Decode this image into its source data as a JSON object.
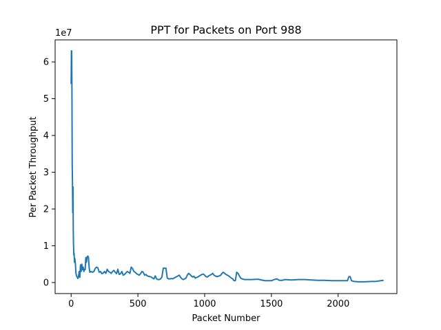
{
  "chart_data": {
    "type": "line",
    "title": "PPT for Packets on Port 988",
    "xlabel": "Packet Number",
    "ylabel": "Per Packet Throughput",
    "y_offset_label": "1e7",
    "xlim": [
      -120,
      2440
    ],
    "ylim": [
      -3.0,
      66.0
    ],
    "y_scale": 10000000,
    "xticks": [
      0,
      500,
      1000,
      1500,
      2000
    ],
    "xtick_labels": [
      "0",
      "500",
      "1000",
      "1500",
      "2000"
    ],
    "yticks": [
      0,
      1,
      2,
      3,
      4,
      5,
      6
    ],
    "ytick_labels": [
      "0",
      "1",
      "2",
      "3",
      "4",
      "5",
      "6"
    ],
    "grid": false,
    "series": [
      {
        "color": "#1f77b4",
        "x": [
          0,
          2,
          4,
          6,
          8,
          10,
          12,
          14,
          16,
          18,
          20,
          22,
          25,
          28,
          32,
          36,
          40,
          45,
          50,
          55,
          60,
          65,
          70,
          75,
          80,
          85,
          90,
          95,
          100,
          105,
          110,
          115,
          120,
          125,
          130,
          135,
          140,
          150,
          160,
          170,
          180,
          190,
          200,
          210,
          220,
          230,
          240,
          250,
          260,
          270,
          280,
          290,
          300,
          310,
          320,
          330,
          340,
          350,
          360,
          370,
          380,
          390,
          400,
          410,
          420,
          430,
          440,
          450,
          460,
          470,
          480,
          490,
          500,
          510,
          520,
          530,
          540,
          550,
          560,
          570,
          580,
          590,
          600,
          610,
          620,
          630,
          640,
          650,
          660,
          670,
          680,
          690,
          700,
          710,
          720,
          730,
          740,
          750,
          760,
          770,
          780,
          790,
          800,
          810,
          820,
          830,
          840,
          850,
          860,
          870,
          880,
          890,
          900,
          910,
          920,
          930,
          940,
          950,
          960,
          970,
          980,
          990,
          1000,
          1010,
          1020,
          1030,
          1040,
          1050,
          1060,
          1070,
          1080,
          1090,
          1100,
          1110,
          1120,
          1130,
          1140,
          1150,
          1160,
          1170,
          1180,
          1190,
          1200,
          1210,
          1220,
          1230,
          1240,
          1250,
          1260,
          1270,
          1280,
          1290,
          1300,
          1350,
          1400,
          1450,
          1500,
          1520,
          1540,
          1560,
          1580,
          1600,
          1650,
          1700,
          1750,
          1800,
          1850,
          1900,
          1950,
          2000,
          2040,
          2060,
          2070,
          2080,
          2090,
          2100,
          2120,
          2150,
          2200,
          2250,
          2280,
          2300,
          2320,
          2340
        ],
        "y": [
          5.4,
          6.3,
          6.3,
          5.2,
          3.2,
          2.7,
          1.9,
          2.6,
          1.4,
          1.0,
          0.75,
          0.8,
          0.55,
          0.65,
          0.5,
          0.25,
          0.18,
          0.15,
          0.11,
          0.16,
          0.3,
          0.14,
          0.48,
          0.3,
          0.5,
          0.35,
          0.42,
          0.3,
          0.36,
          0.35,
          0.68,
          0.55,
          0.7,
          0.72,
          0.68,
          0.4,
          0.28,
          0.3,
          0.28,
          0.3,
          0.38,
          0.42,
          0.4,
          0.28,
          0.3,
          0.24,
          0.26,
          0.3,
          0.25,
          0.36,
          0.3,
          0.28,
          0.25,
          0.3,
          0.33,
          0.28,
          0.24,
          0.36,
          0.22,
          0.24,
          0.3,
          0.2,
          0.22,
          0.26,
          0.3,
          0.28,
          0.25,
          0.42,
          0.38,
          0.3,
          0.28,
          0.24,
          0.22,
          0.2,
          0.24,
          0.3,
          0.28,
          0.2,
          0.22,
          0.18,
          0.17,
          0.16,
          0.15,
          0.12,
          0.1,
          0.18,
          0.1,
          0.08,
          0.08,
          0.1,
          0.15,
          0.39,
          0.39,
          0.39,
          0.12,
          0.1,
          0.1,
          0.11,
          0.1,
          0.12,
          0.14,
          0.16,
          0.18,
          0.2,
          0.14,
          0.1,
          0.08,
          0.1,
          0.12,
          0.2,
          0.25,
          0.22,
          0.18,
          0.15,
          0.17,
          0.12,
          0.14,
          0.15,
          0.18,
          0.2,
          0.22,
          0.23,
          0.2,
          0.16,
          0.15,
          0.18,
          0.2,
          0.22,
          0.25,
          0.2,
          0.18,
          0.16,
          0.17,
          0.18,
          0.2,
          0.25,
          0.28,
          0.25,
          0.22,
          0.2,
          0.18,
          0.15,
          0.12,
          0.1,
          0.05,
          0.05,
          0.28,
          0.25,
          0.18,
          0.12,
          0.1,
          0.09,
          0.08,
          0.08,
          0.09,
          0.05,
          0.05,
          0.08,
          0.1,
          0.06,
          0.06,
          0.08,
          0.07,
          0.08,
          0.08,
          0.07,
          0.06,
          0.06,
          0.05,
          0.05,
          0.05,
          0.05,
          0.05,
          0.16,
          0.16,
          0.05,
          0.03,
          0.02,
          0.02,
          0.03,
          0.03,
          0.04,
          0.05,
          0.06
        ]
      }
    ]
  }
}
